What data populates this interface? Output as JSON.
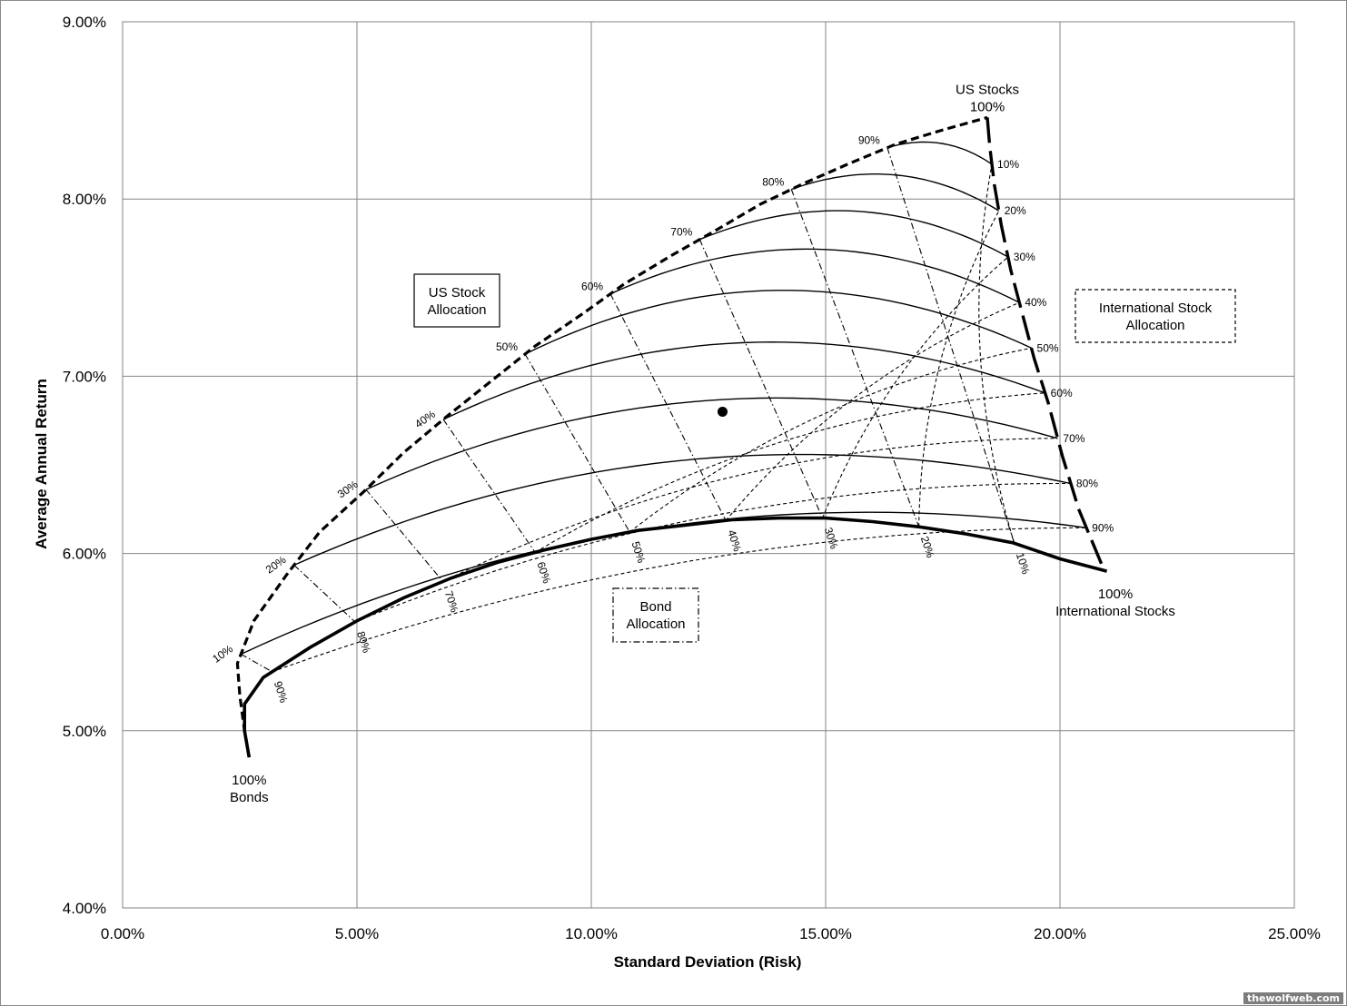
{
  "chart_data": {
    "type": "line",
    "xlabel": "Standard Deviation (Risk)",
    "ylabel": "Average Annual Return",
    "xlim": [
      0,
      25
    ],
    "ylim": [
      4,
      9
    ],
    "x_ticks": [
      "0.00%",
      "5.00%",
      "10.00%",
      "15.00%",
      "20.00%",
      "25.00%"
    ],
    "y_ticks": [
      "4.00%",
      "5.00%",
      "6.00%",
      "7.00%",
      "8.00%",
      "9.00%"
    ],
    "grid": true,
    "corners": {
      "bonds": {
        "label": [
          "100%",
          "Bonds"
        ],
        "x": 2.7,
        "y": 4.85
      },
      "us_stocks": {
        "label": [
          "US Stocks",
          "100%"
        ],
        "x": 18.45,
        "y": 8.46
      },
      "intl_stocks": {
        "label": [
          "100%",
          "International Stocks"
        ],
        "x": 20.95,
        "y": 5.9
      }
    },
    "legend_boxes": [
      {
        "key": "us",
        "lines": [
          "US Stock",
          "Allocation"
        ],
        "style": "solid"
      },
      {
        "key": "intl",
        "lines": [
          "International Stock",
          "Allocation"
        ],
        "style": "dashed"
      },
      {
        "key": "bond",
        "lines": [
          "Bond",
          "Allocation"
        ],
        "style": "dash-dot"
      }
    ],
    "series": [
      {
        "name": "US Stocks / Bonds frontier",
        "style": "bold-dashed",
        "points": [
          [
            2.7,
            4.85
          ],
          [
            2.6,
            5.0
          ],
          [
            2.5,
            5.2
          ],
          [
            2.45,
            5.38
          ],
          [
            2.8,
            5.62
          ],
          [
            3.5,
            5.88
          ],
          [
            4.2,
            6.12
          ],
          [
            5.15,
            6.35
          ],
          [
            6.0,
            6.57
          ],
          [
            6.95,
            6.78
          ],
          [
            7.9,
            6.98
          ],
          [
            8.8,
            7.17
          ],
          [
            9.8,
            7.35
          ],
          [
            10.7,
            7.52
          ],
          [
            11.7,
            7.68
          ],
          [
            12.7,
            7.83
          ],
          [
            13.6,
            7.97
          ],
          [
            14.55,
            8.09
          ],
          [
            15.5,
            8.2
          ],
          [
            16.5,
            8.31
          ],
          [
            17.5,
            8.39
          ],
          [
            18.45,
            8.46
          ]
        ]
      },
      {
        "name": "International Stocks / Bonds frontier",
        "style": "bold-solid",
        "points": [
          [
            2.7,
            4.85
          ],
          [
            2.6,
            5.0
          ],
          [
            2.6,
            5.15
          ],
          [
            3.0,
            5.3
          ],
          [
            4.0,
            5.47
          ],
          [
            5.0,
            5.62
          ],
          [
            6.0,
            5.75
          ],
          [
            7.0,
            5.86
          ],
          [
            8.0,
            5.95
          ],
          [
            9.0,
            6.02
          ],
          [
            10.0,
            6.08
          ],
          [
            11.0,
            6.13
          ],
          [
            12.0,
            6.16
          ],
          [
            13.0,
            6.19
          ],
          [
            14.0,
            6.2
          ],
          [
            15.0,
            6.2
          ],
          [
            16.0,
            6.18
          ],
          [
            17.0,
            6.15
          ],
          [
            18.0,
            6.11
          ],
          [
            19.0,
            6.06
          ],
          [
            20.0,
            5.97
          ],
          [
            21.0,
            5.9
          ]
        ]
      },
      {
        "name": "US / International Stocks frontier",
        "style": "long-dash",
        "points": [
          [
            18.45,
            8.46
          ],
          [
            18.5,
            8.3
          ],
          [
            18.6,
            8.08
          ],
          [
            18.75,
            7.85
          ],
          [
            18.95,
            7.6
          ],
          [
            19.2,
            7.35
          ],
          [
            19.45,
            7.1
          ],
          [
            19.75,
            6.85
          ],
          [
            20.05,
            6.55
          ],
          [
            20.4,
            6.25
          ],
          [
            20.95,
            5.9
          ]
        ]
      }
    ],
    "us_allocation_labels": [
      "10%",
      "20%",
      "30%",
      "40%",
      "50%",
      "60%",
      "70%",
      "80%",
      "90%"
    ],
    "intl_allocation_labels": [
      "10%",
      "20%",
      "30%",
      "40%",
      "50%",
      "60%",
      "70%",
      "80%",
      "90%"
    ],
    "bond_allocation_labels": [
      "10%",
      "20%",
      "30%",
      "40%",
      "50%",
      "60%",
      "70%",
      "80%",
      "90%"
    ],
    "point": {
      "x": 12.8,
      "y": 6.8
    }
  },
  "watermark": "thewolfweb.com"
}
